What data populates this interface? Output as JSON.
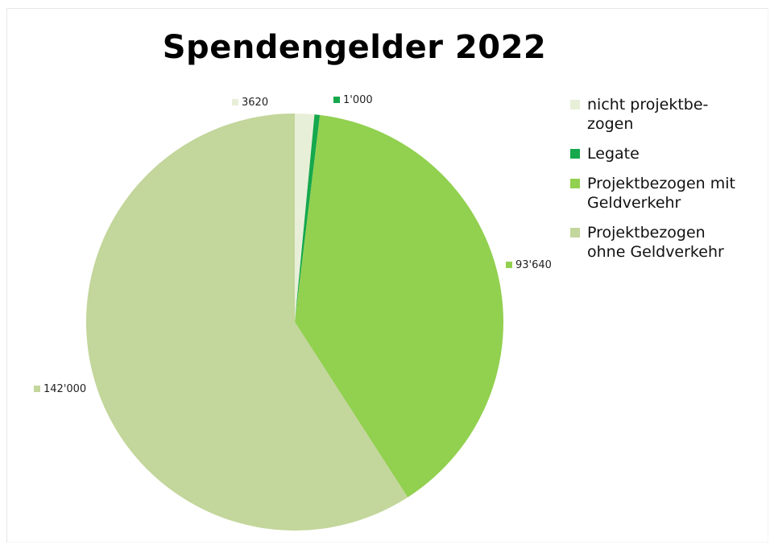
{
  "chart_data": {
    "type": "pie",
    "title": "Spendengelder 2022",
    "legend_position": "right",
    "slices": [
      {
        "label": "nicht projektbe-\nzogen",
        "value": 3620,
        "value_label": "3620",
        "color": "#e8efd8"
      },
      {
        "label": "Legate",
        "value": 1000,
        "value_label": "1'000",
        "color": "#16a84c"
      },
      {
        "label": "Projektbezogen mit\nGeldverkehr",
        "value": 93640,
        "value_label": "93'640",
        "color": "#92d050"
      },
      {
        "label": "Projektbezogen\nohne Geldverkehr",
        "value": 142000,
        "value_label": "142'000",
        "color": "#c3d69b"
      }
    ]
  }
}
